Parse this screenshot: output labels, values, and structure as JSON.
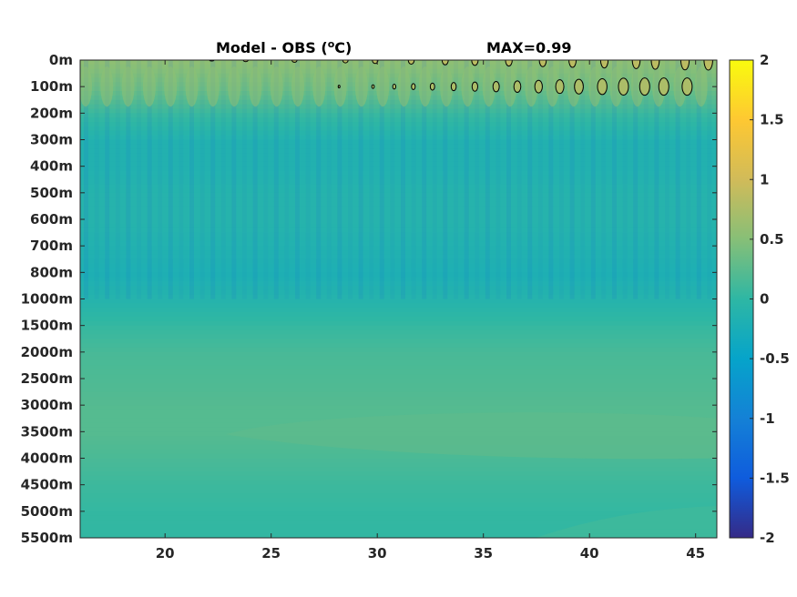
{
  "chart_data": {
    "type": "heatmap",
    "title_left": "Model - OBS (",
    "title_unit_sup": "o",
    "title_unit_rest": "C)",
    "title_right": "MAX=0.99",
    "x_ticks": [
      "20",
      "25",
      "30",
      "35",
      "40",
      "45"
    ],
    "x_tick_values": [
      20,
      25,
      30,
      35,
      40,
      45
    ],
    "xlim": [
      16,
      46
    ],
    "y_ticks": [
      "0m",
      "100m",
      "200m",
      "300m",
      "400m",
      "500m",
      "600m",
      "700m",
      "800m",
      "1000m",
      "1500m",
      "2000m",
      "2500m",
      "3000m",
      "3500m",
      "4000m",
      "4500m",
      "5000m",
      "5500m"
    ],
    "colorbar": {
      "ticks": [
        "2",
        "1.5",
        "1",
        "0.5",
        "0",
        "-0.5",
        "-1",
        "-1.5",
        "-2"
      ],
      "tick_values": [
        2,
        1.5,
        1,
        0.5,
        0,
        -0.5,
        -1,
        -1.5,
        -2
      ],
      "clim": [
        -2,
        2
      ],
      "colormap": "parula"
    },
    "depth_profile": [
      {
        "depth": "0m",
        "value": 0.55
      },
      {
        "depth": "100m",
        "value": 0.35
      },
      {
        "depth": "200m",
        "value": 0.05
      },
      {
        "depth": "300m",
        "value": -0.15
      },
      {
        "depth": "400m",
        "value": -0.15
      },
      {
        "depth": "500m",
        "value": -0.1
      },
      {
        "depth": "600m",
        "value": -0.1
      },
      {
        "depth": "700m",
        "value": -0.15
      },
      {
        "depth": "800m",
        "value": -0.2
      },
      {
        "depth": "1000m",
        "value": -0.1
      },
      {
        "depth": "1500m",
        "value": 0.05
      },
      {
        "depth": "2000m",
        "value": 0.15
      },
      {
        "depth": "2500m",
        "value": 0.18
      },
      {
        "depth": "3000m",
        "value": 0.22
      },
      {
        "depth": "3500m",
        "value": 0.22
      },
      {
        "depth": "4000m",
        "value": 0.15
      },
      {
        "depth": "4500m",
        "value": 0.08
      },
      {
        "depth": "5000m",
        "value": 0.03
      },
      {
        "depth": "5500m",
        "value": 0.02
      }
    ],
    "contour_level": 0.5
  }
}
